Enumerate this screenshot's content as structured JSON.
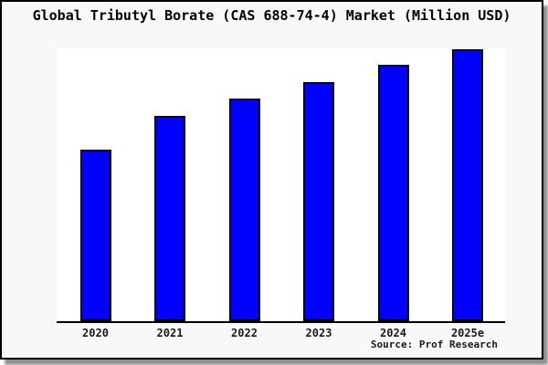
{
  "title": "Global Tributyl Borate (CAS 688-74-4) Market (Million USD)",
  "source_label": "Source: Prof Research",
  "chart_data": {
    "type": "bar",
    "title": "Global Tributyl Borate (CAS 688-74-4) Market (Million USD)",
    "categories": [
      "2020",
      "2021",
      "2022",
      "2023",
      "2024",
      "2025e"
    ],
    "values": [
      63.2,
      75.6,
      81.9,
      87.9,
      94.3,
      100
    ],
    "value_note": "No y-axis or gridlines shown; values are relative bar heights normalized to 2025e = 100",
    "xlabel": "",
    "ylabel": "",
    "legend": false,
    "grid": false,
    "y_axis_visible": false,
    "bar_color": "#0000ff",
    "bar_border_color": "#000000",
    "background_color": "#f8f8f8",
    "plot_background_color": "#ffffff",
    "annotations": [
      "Source: Prof Research"
    ]
  }
}
